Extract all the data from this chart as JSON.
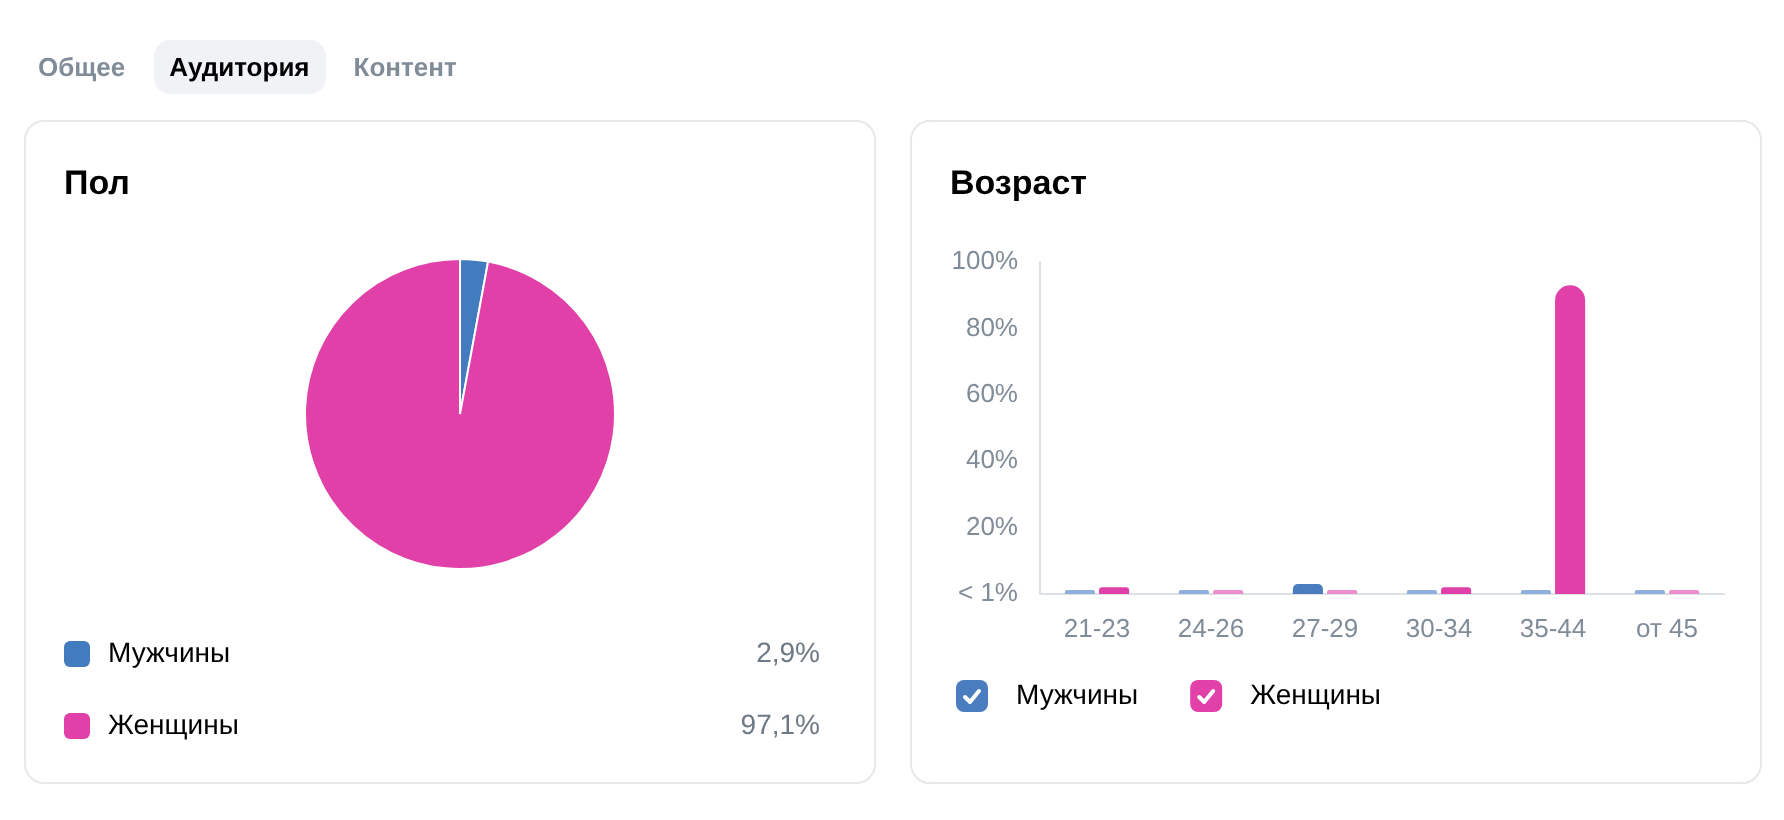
{
  "chart_data": [
    {
      "type": "other",
      "annotations": [
        "Общее",
        "Аудитория",
        "Контент"
      ]
    },
    {
      "type": "pie",
      "title": "Пол",
      "categories": [
        "Мужчины",
        "Женщины"
      ],
      "values": [
        2.9,
        97.1
      ],
      "colors": [
        "#437bbf",
        "#e040a8"
      ],
      "value_labels": [
        "2,9%",
        "97,1%"
      ],
      "legend": "bottom"
    },
    {
      "type": "bar",
      "title": "Возраст",
      "categories": [
        "21-23",
        "24-26",
        "27-29",
        "30-34",
        "35-44",
        "от 45"
      ],
      "series": [
        {
          "name": "Мужчины",
          "color": "#4a7dbf",
          "colors": [
            "#8eb0da",
            "#8eb0da",
            "#4a7dbf",
            "#8eb0da",
            "#8eb0da",
            "#8eb0da"
          ],
          "values": [
            0,
            0,
            3,
            0,
            0,
            0
          ]
        },
        {
          "name": "Женщины",
          "color": "#e040a8",
          "colors": [
            "#e040a8",
            "#ec8fcc",
            "#ec8fcc",
            "#e040a8",
            "#e040a8",
            "#ec8fcc"
          ],
          "values": [
            2,
            0,
            0,
            2,
            93,
            0
          ]
        }
      ],
      "ylim": [
        0,
        100
      ],
      "yticks": [
        {
          "value": 0,
          "label": "< 1%"
        },
        {
          "value": 20,
          "label": "20%"
        },
        {
          "value": 40,
          "label": "40%"
        },
        {
          "value": 60,
          "label": "60%"
        },
        {
          "value": 80,
          "label": "80%"
        },
        {
          "value": 100,
          "label": "100%"
        }
      ],
      "grid": false,
      "legend": "bottom"
    }
  ]
}
